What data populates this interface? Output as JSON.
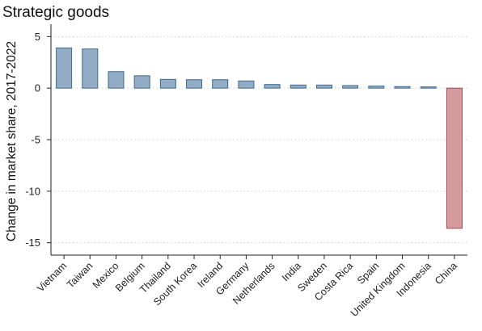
{
  "chart_data": {
    "type": "bar",
    "title": "Strategic goods",
    "xlabel": "",
    "ylabel": "Change in market share, 2017-2022",
    "ylim": [
      -16.2,
      6.2
    ],
    "yticks": [
      5,
      0,
      -5,
      -10,
      -15
    ],
    "grid": "horizontal dotted",
    "categories": [
      "Vietnam",
      "Taiwan",
      "Mexico",
      "Belgium",
      "Thailand",
      "South Korea",
      "Ireland",
      "Germany",
      "Netherlands",
      "India",
      "Sweden",
      "Costa Rica",
      "Spain",
      "United Kingdom",
      "Indonesia",
      "China"
    ],
    "values": [
      3.9,
      3.8,
      1.6,
      1.2,
      0.85,
      0.82,
      0.82,
      0.7,
      0.35,
      0.3,
      0.3,
      0.25,
      0.2,
      0.15,
      0.12,
      -13.6
    ],
    "colors": {
      "positive_fill": "#92acc5",
      "positive_stroke": "#3f6a8f",
      "negative_fill": "#d49a9e",
      "negative_stroke": "#9b4a55",
      "grid": "#cfcfcf",
      "axis": "#222222"
    }
  }
}
